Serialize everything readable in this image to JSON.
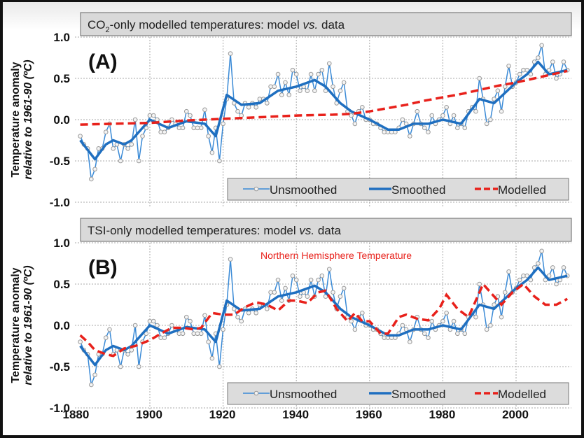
{
  "chart_data": [
    {
      "type": "line",
      "panel_label": "(A)",
      "title": {
        "pre": "CO",
        "sub": "2",
        "mid": "-only modelled temperatures: model ",
        "it": "vs.",
        "post": " data"
      },
      "ylabel": "Temperature anomaly",
      "ylabel2": "relative to 1961-90 (ºC)",
      "annotation": "",
      "ylim": [
        -1.0,
        1.0
      ],
      "yticks": [
        "1.0",
        "0.5",
        "0.0",
        "-0.5",
        "-1.0"
      ],
      "xticks": [],
      "grid": true,
      "legend": {
        "position": "bottom-right",
        "entries": [
          "Unsmoothed",
          "Smoothed",
          "Modelled"
        ]
      },
      "modelled": {
        "x": [
          1881,
          1890,
          1900,
          1910,
          1920,
          1930,
          1940,
          1950,
          1955,
          1960,
          1965,
          1970,
          1975,
          1980,
          1985,
          1990,
          1995,
          2000,
          2005,
          2010,
          2014
        ],
        "y": [
          -0.06,
          -0.05,
          -0.04,
          -0.01,
          0.01,
          0.03,
          0.05,
          0.06,
          0.07,
          0.1,
          0.14,
          0.18,
          0.23,
          0.27,
          0.31,
          0.36,
          0.41,
          0.45,
          0.5,
          0.55,
          0.59
        ]
      }
    },
    {
      "type": "line",
      "panel_label": "(B)",
      "title": {
        "pre": "TSI-only modelled temperatures: model ",
        "sub": "",
        "mid": "",
        "it": "vs.",
        "post": " data"
      },
      "ylabel": "Temperature anomaly",
      "ylabel2": "relative to 1961-90 (ºC)",
      "annotation": "Northern Hemisphere Temperature",
      "ylim": [
        -1.0,
        1.0
      ],
      "yticks": [
        "1.0",
        "0.5",
        "0.0",
        "-0.5",
        "-1.0"
      ],
      "xticks": [
        "1880",
        "1900",
        "1920",
        "1940",
        "1960",
        "1980",
        "2000"
      ],
      "grid": true,
      "legend": {
        "position": "bottom-right",
        "entries": [
          "Unsmoothed",
          "Smoothed",
          "Modelled"
        ]
      },
      "modelled": {
        "x": [
          1881,
          1883,
          1885,
          1888,
          1890,
          1893,
          1896,
          1900,
          1903,
          1906,
          1909,
          1912,
          1914,
          1917,
          1920,
          1923,
          1926,
          1929,
          1932,
          1935,
          1938,
          1940,
          1943,
          1946,
          1948,
          1951,
          1954,
          1956,
          1958,
          1960,
          1963,
          1965,
          1968,
          1970,
          1973,
          1976,
          1979,
          1981,
          1984,
          1987,
          1990,
          1991,
          1993,
          1996,
          1999,
          2002,
          2005,
          2008,
          2011,
          2014
        ],
        "y": [
          -0.12,
          -0.2,
          -0.3,
          -0.35,
          -0.37,
          -0.28,
          -0.25,
          -0.18,
          -0.1,
          -0.03,
          -0.03,
          -0.05,
          -0.03,
          0.15,
          0.13,
          0.13,
          0.22,
          0.28,
          0.25,
          0.18,
          0.3,
          0.3,
          0.27,
          0.4,
          0.42,
          0.2,
          0.05,
          0.15,
          0.05,
          0.05,
          -0.1,
          -0.1,
          0.1,
          0.13,
          0.08,
          0.06,
          0.2,
          0.37,
          0.2,
          0.1,
          0.4,
          0.5,
          0.4,
          0.25,
          0.4,
          0.5,
          0.35,
          0.25,
          0.25,
          0.32
        ]
      }
    }
  ],
  "observed": {
    "start_year": 1881,
    "unsmoothed": [
      -0.2,
      -0.3,
      -0.35,
      -0.72,
      -0.6,
      -0.35,
      -0.35,
      -0.15,
      -0.05,
      -0.35,
      -0.3,
      -0.5,
      -0.3,
      -0.35,
      -0.3,
      0.0,
      -0.5,
      -0.2,
      -0.1,
      0.05,
      0.05,
      0.0,
      -0.15,
      -0.15,
      -0.1,
      0.0,
      -0.05,
      -0.1,
      -0.1,
      0.1,
      0.05,
      -0.1,
      -0.1,
      -0.1,
      0.12,
      -0.2,
      -0.4,
      -0.1,
      -0.5,
      -0.05,
      0.25,
      0.8,
      0.2,
      0.1,
      0.05,
      0.2,
      0.15,
      0.2,
      0.15,
      0.25,
      0.25,
      0.2,
      0.4,
      0.4,
      0.55,
      0.3,
      0.45,
      0.3,
      0.6,
      0.55,
      0.35,
      0.4,
      0.35,
      0.55,
      0.35,
      0.55,
      0.6,
      0.35,
      0.68,
      0.4,
      0.2,
      0.35,
      0.45,
      0.1,
      0.05,
      -0.05,
      0.1,
      0.15,
      0.0,
      0.0,
      -0.05,
      -0.05,
      -0.1,
      -0.15,
      -0.15,
      -0.15,
      -0.15,
      -0.1,
      0.0,
      -0.05,
      -0.2,
      -0.05,
      0.1,
      -0.05,
      -0.1,
      -0.15,
      0.05,
      -0.05,
      0.0,
      0.05,
      0.15,
      -0.05,
      0.05,
      -0.1,
      -0.05,
      -0.1,
      0.1,
      0.15,
      0.1,
      0.5,
      0.25,
      -0.05,
      0.0,
      0.25,
      0.35,
      0.1,
      0.4,
      0.65,
      0.4,
      0.45,
      0.55,
      0.6,
      0.6,
      0.55,
      0.7,
      0.75,
      0.9,
      0.55,
      0.6,
      0.7,
      0.5,
      0.55,
      0.7,
      0.6
    ],
    "smoothed": {
      "x": [
        1881,
        1885,
        1888,
        1890,
        1893,
        1895,
        1900,
        1905,
        1910,
        1915,
        1918,
        1921,
        1925,
        1930,
        1935,
        1940,
        1945,
        1948,
        1952,
        1955,
        1960,
        1965,
        1968,
        1972,
        1976,
        1980,
        1985,
        1990,
        1994,
        2000,
        2003,
        2006,
        2009,
        2014
      ],
      "y": [
        -0.25,
        -0.48,
        -0.3,
        -0.25,
        -0.3,
        -0.25,
        0.0,
        -0.1,
        -0.02,
        -0.05,
        -0.2,
        0.3,
        0.18,
        0.2,
        0.35,
        0.4,
        0.48,
        0.4,
        0.2,
        0.1,
        0.0,
        -0.12,
        -0.12,
        -0.05,
        -0.05,
        0.0,
        -0.05,
        0.25,
        0.2,
        0.45,
        0.55,
        0.7,
        0.55,
        0.6
      ]
    }
  },
  "colors": {
    "unsmoothed": "#3a8ad6",
    "smoothed": "#1f6fc0",
    "modelled": "#e8211b",
    "marker": "#999999",
    "grid": "#aaaaaa",
    "title_bg": "#d9d9d9",
    "annotation": "#e8211b"
  }
}
